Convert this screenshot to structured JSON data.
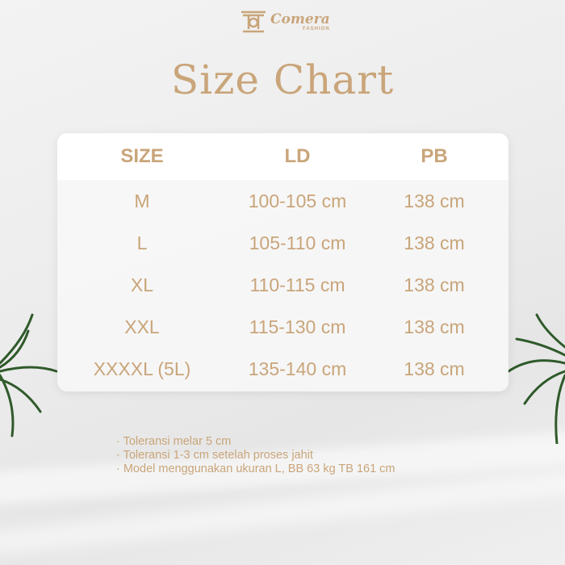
{
  "brand": {
    "name": "Comera",
    "sub": "FASHION"
  },
  "title": "Size Chart",
  "colors": {
    "accent": "#c9a57a"
  },
  "table": {
    "headers": [
      "SIZE",
      "LD",
      "PB"
    ],
    "rows": [
      [
        "M",
        "100-105 cm",
        "138 cm"
      ],
      [
        "L",
        "105-110 cm",
        "138 cm"
      ],
      [
        "XL",
        "110-115 cm",
        "138 cm"
      ],
      [
        "XXL",
        "115-130 cm",
        "138 cm"
      ],
      [
        "XXXXL (5L)",
        "135-140 cm",
        "138 cm"
      ]
    ]
  },
  "notes": [
    "· Toleransi melar 5 cm",
    "· Toleransi 1-3 cm setelah proses jahit",
    "· Model menggunakan ukuran L, BB 63 kg TB 161 cm"
  ]
}
